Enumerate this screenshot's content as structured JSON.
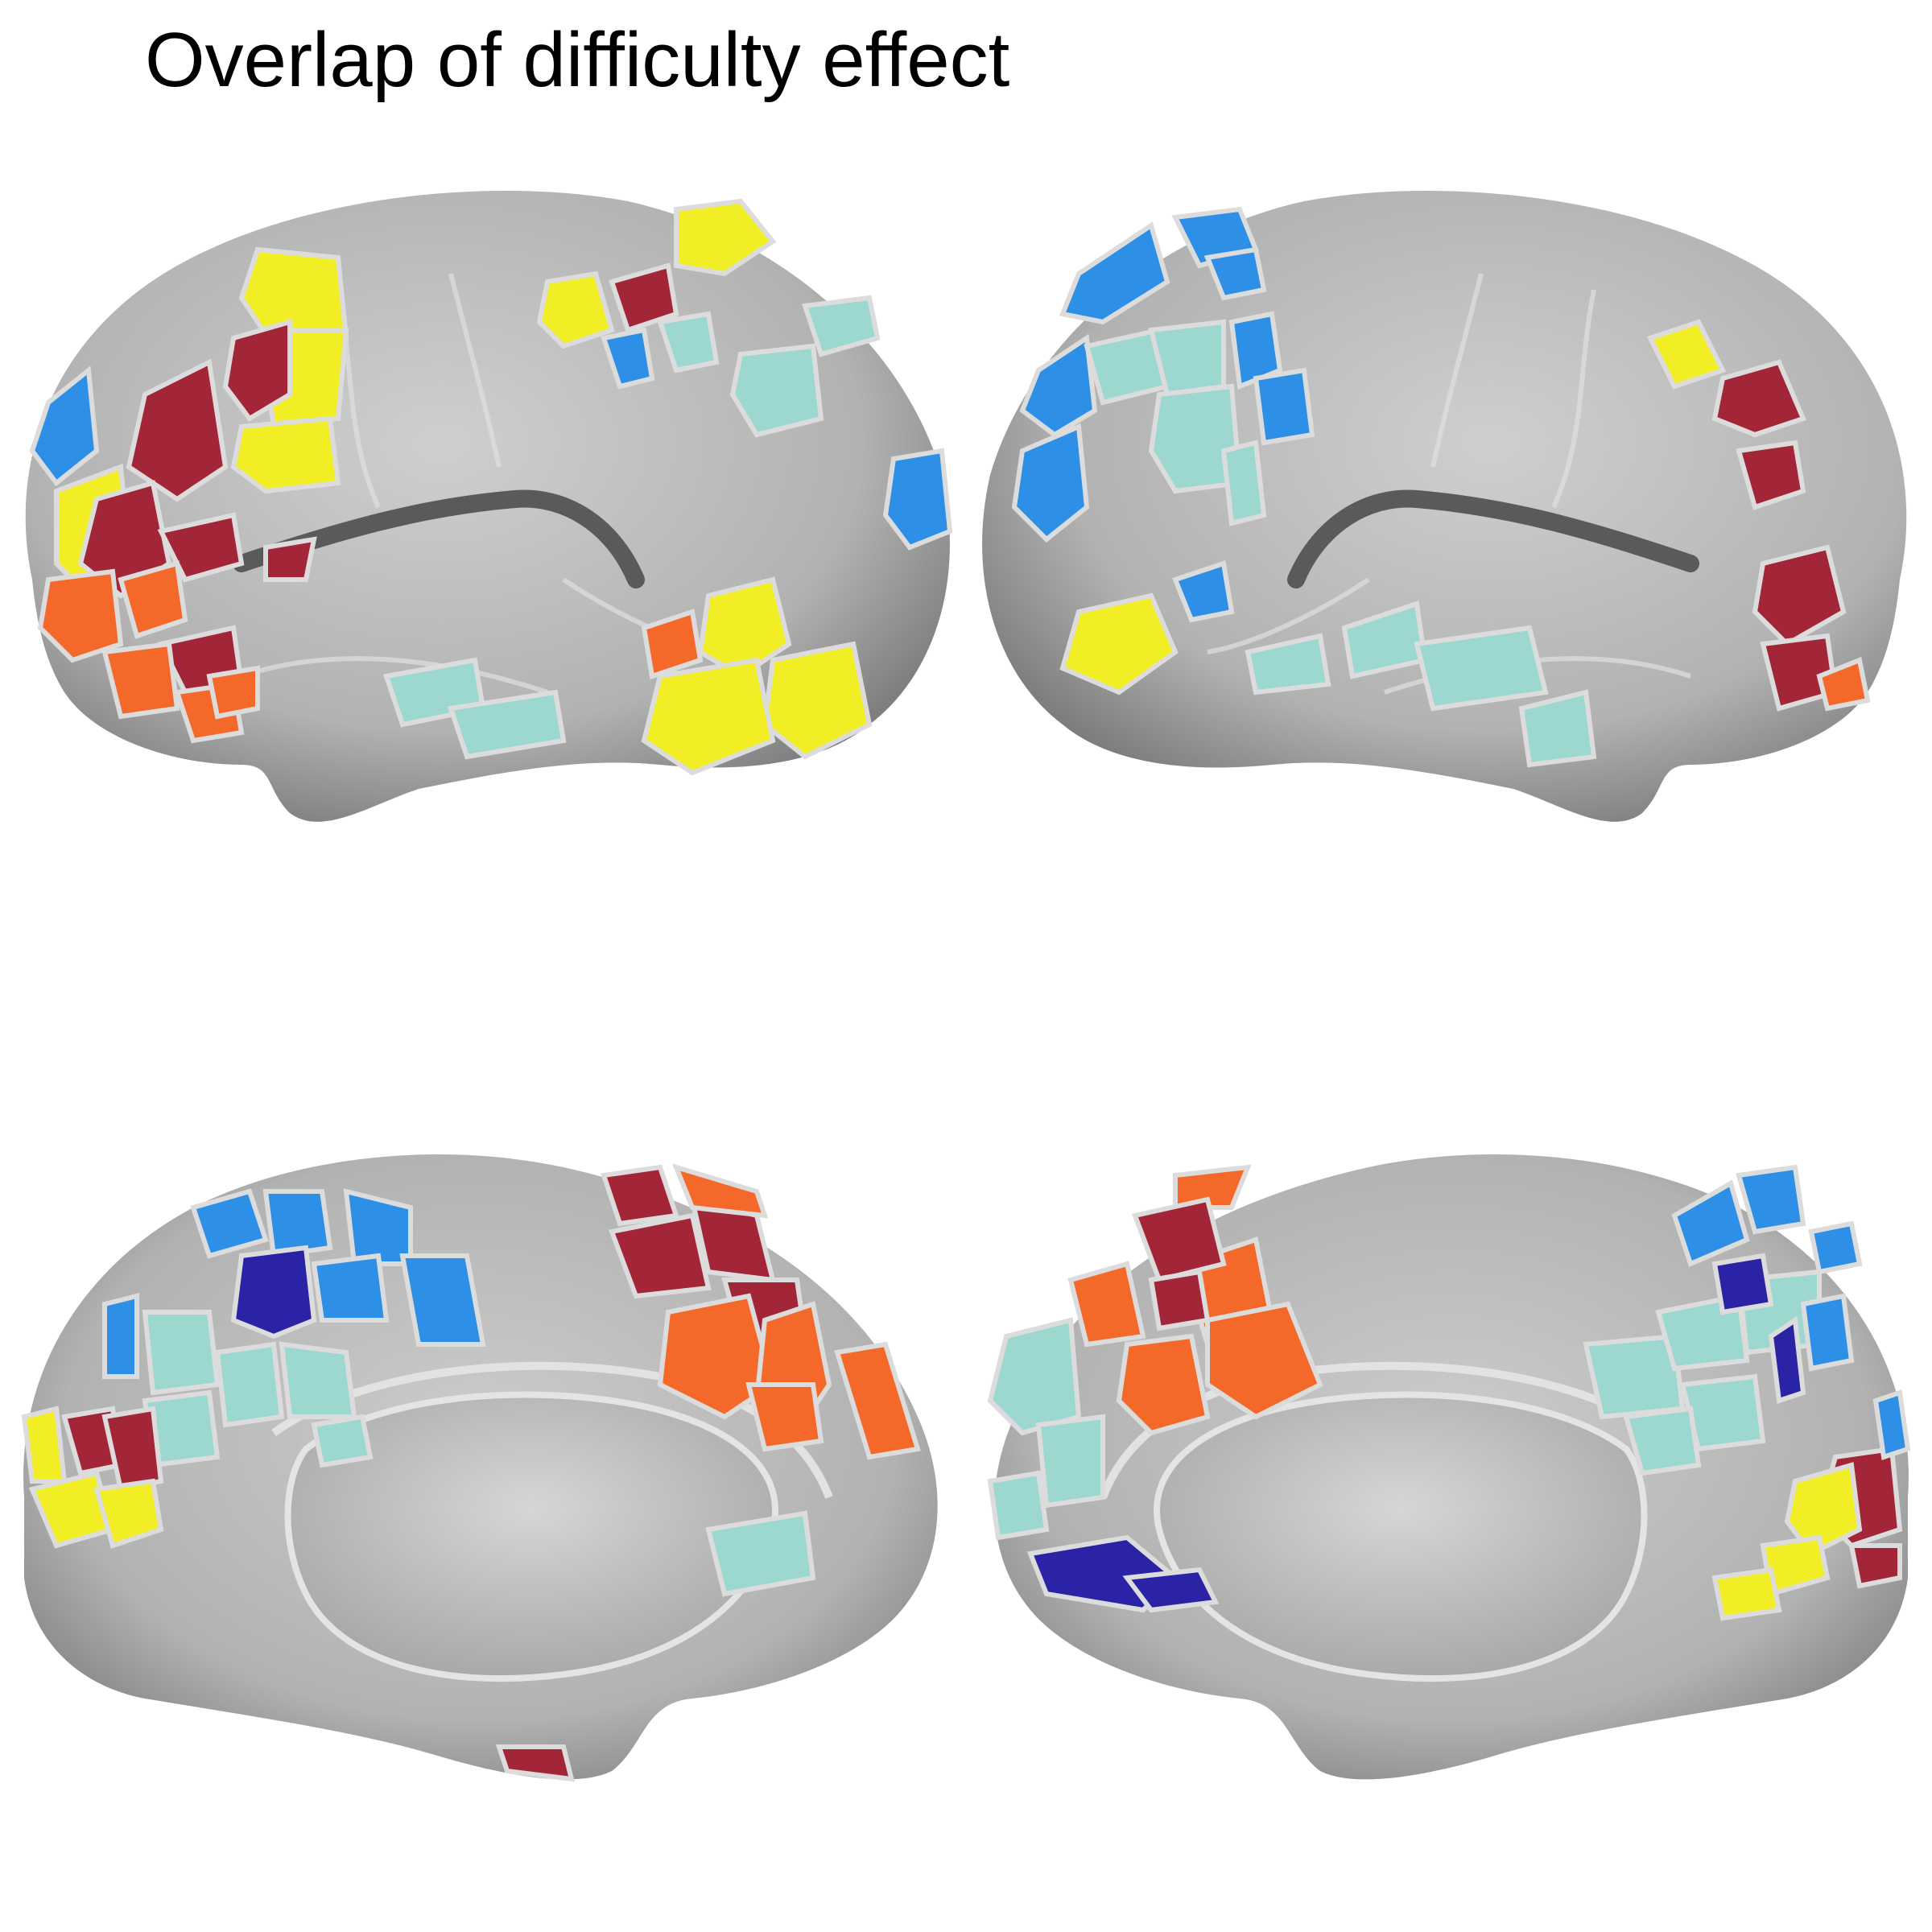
{
  "figure": {
    "title": "Overlap of difficulty effect"
  },
  "colors": {
    "cortex": "#b4b4b4",
    "cortex_light": "#d2d2d2",
    "cortex_dark": "#777777",
    "parcel_border": "#dcdcdc",
    "yellow": "#f2ee25",
    "dark_red": "#a22637",
    "orange": "#f4682a",
    "light_blue": "#2e8fe6",
    "aqua": "#9cd8d0",
    "navy": "#2a23a6"
  },
  "panels": [
    {
      "view": "lateral-left"
    },
    {
      "view": "lateral-right"
    },
    {
      "view": "medial-left"
    },
    {
      "view": "medial-right"
    }
  ]
}
